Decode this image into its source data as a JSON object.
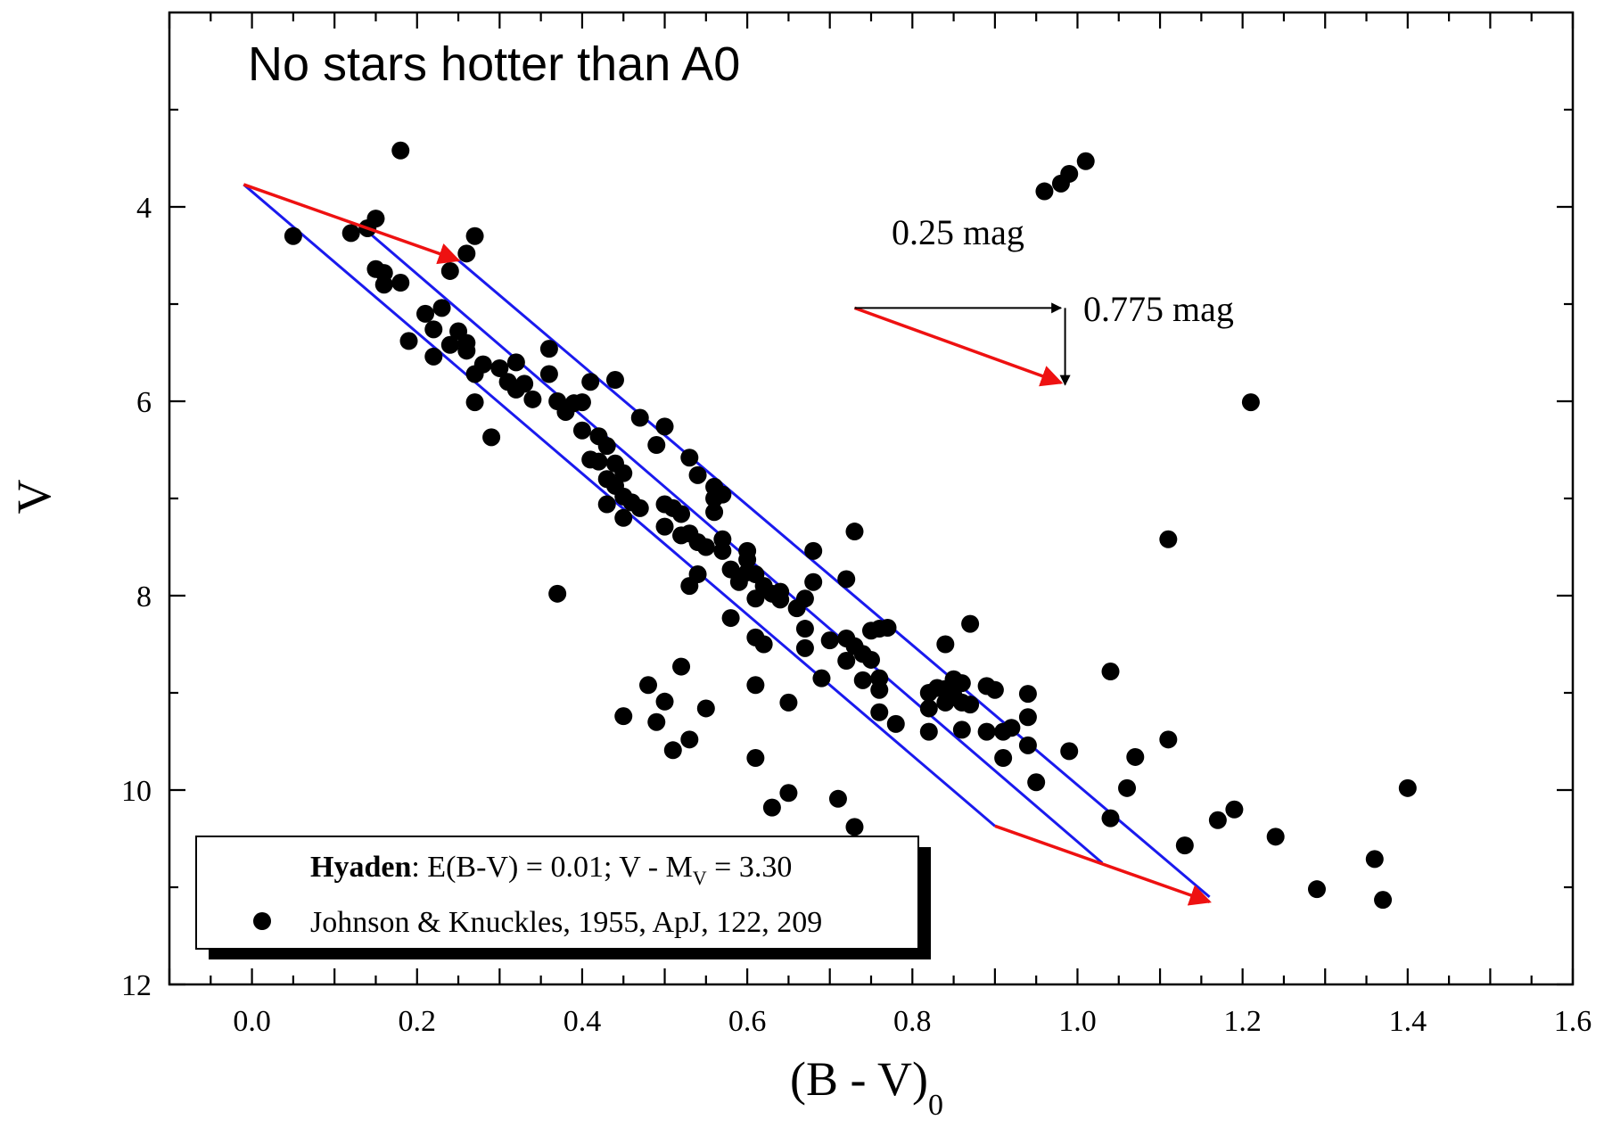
{
  "chart_data": {
    "type": "scatter",
    "title": "No stars hotter than A0",
    "xlabel": "(B - V)",
    "xlabel_sub": "0",
    "ylabel": "V",
    "xlim": [
      -0.1,
      1.6
    ],
    "ylim": [
      12,
      2.0
    ],
    "y_inverted": true,
    "x_ticks": [
      0.0,
      0.2,
      0.4,
      0.6,
      0.8,
      1.0,
      1.2,
      1.4,
      1.6
    ],
    "x_tick_labels": [
      "0.0",
      "0.2",
      "0.4",
      "0.6",
      "0.8",
      "1.0",
      "1.2",
      "1.4",
      "1.6"
    ],
    "y_ticks": [
      4,
      6,
      8,
      10,
      12
    ],
    "y_tick_labels": [
      "4",
      "6",
      "8",
      "10",
      "12"
    ],
    "colors": {
      "points": "#000000",
      "main_sequence_band": "#1a1aee",
      "reddening_vector": "#ee1111",
      "annotation": "#000000"
    },
    "legend": {
      "position": "bottom-left",
      "title_bold": "Hyaden",
      "title_rest": ": E(B-V) = 0.01; V - M",
      "title_sub": "V",
      "title_tail": " = 3.30",
      "series_label": "Johnson & Knuckles, 1955, ApJ, 122, 209"
    },
    "annotations": {
      "horizontal_shift": "0.25 mag",
      "vertical_shift": "0.775 mag"
    },
    "band_lines": [
      [
        [
          -0.01,
          3.77
        ],
        [
          0.9,
          10.37
        ]
      ],
      [
        [
          0.13,
          4.18
        ],
        [
          1.03,
          10.75
        ]
      ],
      [
        [
          0.25,
          4.55
        ],
        [
          1.16,
          11.1
        ]
      ]
    ],
    "red_vectors": [
      [
        [
          -0.01,
          3.77
        ],
        [
          0.25,
          4.55
        ]
      ],
      [
        [
          0.9,
          10.37
        ],
        [
          1.16,
          11.15
        ]
      ],
      [
        [
          0.73,
          5.04
        ],
        [
          0.98,
          5.81
        ]
      ]
    ],
    "black_vectors": [
      [
        [
          0.73,
          5.04
        ],
        [
          0.98,
          5.04
        ]
      ],
      [
        [
          0.985,
          5.04
        ],
        [
          0.985,
          5.83
        ]
      ]
    ],
    "series": [
      {
        "name": "Johnson & Knuckles, 1955, ApJ, 122, 209",
        "points": [
          [
            0.05,
            4.3
          ],
          [
            0.18,
            3.42
          ],
          [
            0.12,
            4.27
          ],
          [
            0.15,
            4.12
          ],
          [
            0.14,
            4.22
          ],
          [
            0.27,
            4.3
          ],
          [
            0.26,
            4.48
          ],
          [
            0.24,
            4.66
          ],
          [
            0.15,
            4.64
          ],
          [
            0.16,
            4.68
          ],
          [
            0.16,
            4.8
          ],
          [
            0.18,
            4.78
          ],
          [
            0.21,
            5.1
          ],
          [
            0.22,
            5.26
          ],
          [
            0.23,
            5.04
          ],
          [
            0.19,
            5.38
          ],
          [
            0.22,
            5.54
          ],
          [
            0.24,
            5.42
          ],
          [
            0.25,
            5.28
          ],
          [
            0.26,
            5.4
          ],
          [
            0.26,
            5.48
          ],
          [
            0.27,
            5.72
          ],
          [
            0.28,
            5.62
          ],
          [
            0.27,
            6.01
          ],
          [
            0.29,
            6.37
          ],
          [
            0.3,
            5.66
          ],
          [
            0.31,
            5.8
          ],
          [
            0.32,
            5.6
          ],
          [
            0.32,
            5.88
          ],
          [
            0.33,
            5.82
          ],
          [
            0.34,
            5.98
          ],
          [
            0.36,
            5.72
          ],
          [
            0.36,
            5.46
          ],
          [
            0.37,
            6.0
          ],
          [
            0.37,
            7.98
          ],
          [
            0.38,
            6.11
          ],
          [
            0.39,
            6.02
          ],
          [
            0.4,
            6.01
          ],
          [
            0.4,
            6.3
          ],
          [
            0.41,
            5.8
          ],
          [
            0.44,
            5.78
          ],
          [
            0.42,
            6.36
          ],
          [
            0.43,
            6.46
          ],
          [
            0.41,
            6.6
          ],
          [
            0.42,
            6.62
          ],
          [
            0.44,
            6.64
          ],
          [
            0.43,
            6.8
          ],
          [
            0.44,
            6.87
          ],
          [
            0.45,
            6.74
          ],
          [
            0.45,
            6.98
          ],
          [
            0.46,
            7.04
          ],
          [
            0.47,
            7.1
          ],
          [
            0.43,
            7.06
          ],
          [
            0.45,
            7.2
          ],
          [
            0.47,
            6.17
          ],
          [
            0.5,
            6.26
          ],
          [
            0.49,
            6.45
          ],
          [
            0.5,
            7.06
          ],
          [
            0.5,
            7.29
          ],
          [
            0.51,
            7.1
          ],
          [
            0.52,
            7.38
          ],
          [
            0.52,
            7.16
          ],
          [
            0.53,
            7.36
          ],
          [
            0.53,
            6.58
          ],
          [
            0.54,
            6.76
          ],
          [
            0.54,
            7.45
          ],
          [
            0.55,
            7.5
          ],
          [
            0.56,
            7.0
          ],
          [
            0.56,
            7.14
          ],
          [
            0.57,
            6.96
          ],
          [
            0.56,
            6.88
          ],
          [
            0.57,
            7.42
          ],
          [
            0.53,
            7.9
          ],
          [
            0.54,
            7.78
          ],
          [
            0.57,
            7.54
          ],
          [
            0.58,
            7.73
          ],
          [
            0.59,
            7.86
          ],
          [
            0.6,
            7.76
          ],
          [
            0.6,
            7.54
          ],
          [
            0.6,
            7.63
          ],
          [
            0.61,
            7.78
          ],
          [
            0.61,
            8.03
          ],
          [
            0.62,
            7.9
          ],
          [
            0.63,
            7.98
          ],
          [
            0.64,
            8.04
          ],
          [
            0.64,
            7.96
          ],
          [
            0.66,
            8.13
          ],
          [
            0.67,
            8.03
          ],
          [
            0.68,
            7.86
          ],
          [
            0.68,
            7.54
          ],
          [
            0.72,
            7.83
          ],
          [
            0.73,
            7.34
          ],
          [
            0.58,
            8.23
          ],
          [
            0.62,
            8.5
          ],
          [
            0.61,
            8.43
          ],
          [
            0.67,
            8.34
          ],
          [
            0.67,
            8.54
          ],
          [
            0.7,
            8.46
          ],
          [
            0.72,
            8.44
          ],
          [
            0.72,
            8.67
          ],
          [
            0.73,
            8.52
          ],
          [
            0.74,
            8.6
          ],
          [
            0.75,
            8.36
          ],
          [
            0.76,
            8.34
          ],
          [
            0.77,
            8.33
          ],
          [
            0.69,
            8.85
          ],
          [
            0.74,
            8.87
          ],
          [
            0.75,
            8.66
          ],
          [
            0.76,
            8.85
          ],
          [
            0.76,
            8.97
          ],
          [
            0.76,
            9.2
          ],
          [
            0.78,
            9.32
          ],
          [
            0.82,
            9.16
          ],
          [
            0.82,
            9.0
          ],
          [
            0.83,
            8.95
          ],
          [
            0.84,
            8.96
          ],
          [
            0.84,
            9.1
          ],
          [
            0.85,
            8.86
          ],
          [
            0.85,
            9.03
          ],
          [
            0.86,
            8.9
          ],
          [
            0.86,
            9.1
          ],
          [
            0.87,
            9.12
          ],
          [
            0.86,
            9.38
          ],
          [
            0.82,
            9.4
          ],
          [
            0.84,
            8.5
          ],
          [
            0.87,
            8.29
          ],
          [
            0.89,
            8.93
          ],
          [
            0.9,
            8.97
          ],
          [
            0.89,
            9.4
          ],
          [
            0.91,
            9.4
          ],
          [
            0.92,
            9.36
          ],
          [
            0.91,
            9.67
          ],
          [
            0.94,
            9.54
          ],
          [
            0.94,
            9.01
          ],
          [
            0.94,
            9.25
          ],
          [
            0.95,
            9.92
          ],
          [
            0.99,
            9.6
          ],
          [
            1.04,
            8.78
          ],
          [
            1.04,
            10.29
          ],
          [
            1.06,
            9.98
          ],
          [
            1.07,
            9.66
          ],
          [
            1.11,
            9.48
          ],
          [
            1.11,
            7.42
          ],
          [
            1.21,
            6.01
          ],
          [
            1.13,
            10.57
          ],
          [
            1.17,
            10.31
          ],
          [
            1.19,
            10.2
          ],
          [
            1.24,
            10.48
          ],
          [
            1.29,
            11.02
          ],
          [
            1.36,
            10.71
          ],
          [
            1.37,
            11.13
          ],
          [
            1.4,
            9.98
          ],
          [
            0.96,
            3.84
          ],
          [
            0.98,
            3.76
          ],
          [
            0.99,
            3.66
          ],
          [
            1.01,
            3.53
          ],
          [
            0.45,
            9.24
          ],
          [
            0.48,
            8.92
          ],
          [
            0.49,
            9.3
          ],
          [
            0.5,
            9.09
          ],
          [
            0.52,
            8.73
          ],
          [
            0.51,
            9.59
          ],
          [
            0.53,
            9.48
          ],
          [
            0.55,
            9.16
          ],
          [
            0.61,
            8.92
          ],
          [
            0.61,
            9.67
          ],
          [
            0.65,
            9.1
          ],
          [
            0.65,
            10.03
          ],
          [
            0.63,
            10.18
          ],
          [
            0.71,
            10.09
          ],
          [
            0.73,
            10.38
          ]
        ]
      }
    ]
  }
}
